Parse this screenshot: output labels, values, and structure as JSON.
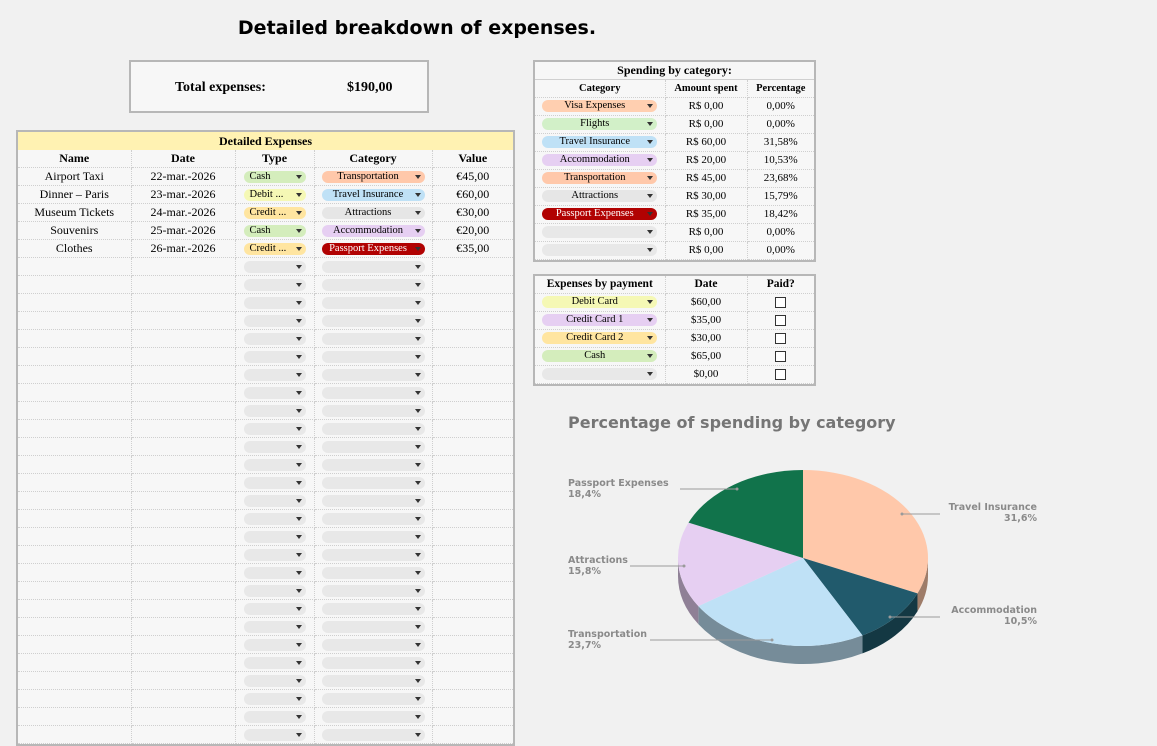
{
  "title": "Detailed breakdown of expenses.",
  "total": {
    "label": "Total expenses:",
    "value": "$190,00"
  },
  "detail": {
    "caption": "Detailed Expenses",
    "headers": [
      "Name",
      "Date",
      "Type",
      "Category",
      "Value"
    ],
    "rows": [
      {
        "name": "Airport Taxi",
        "date": "22-mar.-2026",
        "type": "Cash",
        "category": "Transportation",
        "value": "€45,00"
      },
      {
        "name": "Dinner – Paris",
        "date": "23-mar.-2026",
        "type": "Debit ...",
        "category": "Travel Insurance",
        "value": "€60,00"
      },
      {
        "name": "Museum Tickets",
        "date": "24-mar.-2026",
        "type": "Credit ...",
        "category": "Attractions",
        "value": "€30,00"
      },
      {
        "name": "Souvenirs",
        "date": "25-mar.-2026",
        "type": "Cash",
        "category": "Accommodation",
        "value": "€20,00"
      },
      {
        "name": "Clothes",
        "date": "26-mar.-2026",
        "type": "Credit ...",
        "category": "Passport Expenses",
        "value": "€35,00"
      }
    ],
    "empty_rows": 27
  },
  "spending": {
    "caption": "Spending by category:",
    "headers": [
      "Category",
      "Amount spent",
      "Percentage"
    ],
    "rows": [
      {
        "category": "Visa Expenses",
        "amount": "R$ 0,00",
        "pct": "0,00%"
      },
      {
        "category": "Flights",
        "amount": "R$ 0,00",
        "pct": "0,00%"
      },
      {
        "category": "Travel Insurance",
        "amount": "R$ 60,00",
        "pct": "31,58%"
      },
      {
        "category": "Accommodation",
        "amount": "R$ 20,00",
        "pct": "10,53%"
      },
      {
        "category": "Transportation",
        "amount": "R$ 45,00",
        "pct": "23,68%"
      },
      {
        "category": "Attractions",
        "amount": "R$ 30,00",
        "pct": "15,79%"
      },
      {
        "category": "Passport Expenses",
        "amount": "R$ 35,00",
        "pct": "18,42%"
      },
      {
        "category": "",
        "amount": "R$ 0,00",
        "pct": "0,00%"
      },
      {
        "category": "",
        "amount": "R$ 0,00",
        "pct": "0,00%"
      }
    ]
  },
  "payment": {
    "headers": [
      "Expenses by payment",
      "Date",
      "Paid?"
    ],
    "rows": [
      {
        "method": "Debit Card",
        "amount": "$60,00"
      },
      {
        "method": "Credit Card 1",
        "amount": "$35,00"
      },
      {
        "method": "Credit Card 2",
        "amount": "$30,00"
      },
      {
        "method": "Cash",
        "amount": "$65,00"
      },
      {
        "method": "",
        "amount": "$0,00"
      }
    ]
  },
  "colors": {
    "Visa Expenses": "#ffcfb0",
    "Flights": "#d2f0c8",
    "Travel Insurance": "#bfe1f6",
    "Accommodation": "#e6cff2",
    "Transportation": "#ffc8aa",
    "Attractions": "#e6e6e6",
    "Passport Expenses": "#b10202",
    "Cash": "#d4edbc",
    "Debit Card": "#f5f8b5",
    "Debit ...": "#f5f8b5",
    "Credit Card 1": "#e6cff2",
    "Credit Card 2": "#ffe5a0",
    "Credit ...": "#ffe5a0",
    "empty": "#e8e8e8"
  },
  "chart_data": {
    "type": "pie",
    "title": "Percentage of spending by category",
    "slices": [
      {
        "label": "Travel Insurance",
        "pct_label": "31,6%",
        "value": 31.58,
        "color": "#ffc8aa"
      },
      {
        "label": "Accommodation",
        "pct_label": "10,5%",
        "value": 10.53,
        "color": "#215a6c"
      },
      {
        "label": "Transportation",
        "pct_label": "23,7%",
        "value": 23.68,
        "color": "#bfe1f6"
      },
      {
        "label": "Attractions",
        "pct_label": "15,8%",
        "value": 15.79,
        "color": "#e6cff2"
      },
      {
        "label": "Passport Expenses",
        "pct_label": "18,4%",
        "value": 18.42,
        "color": "#11734b"
      }
    ]
  }
}
